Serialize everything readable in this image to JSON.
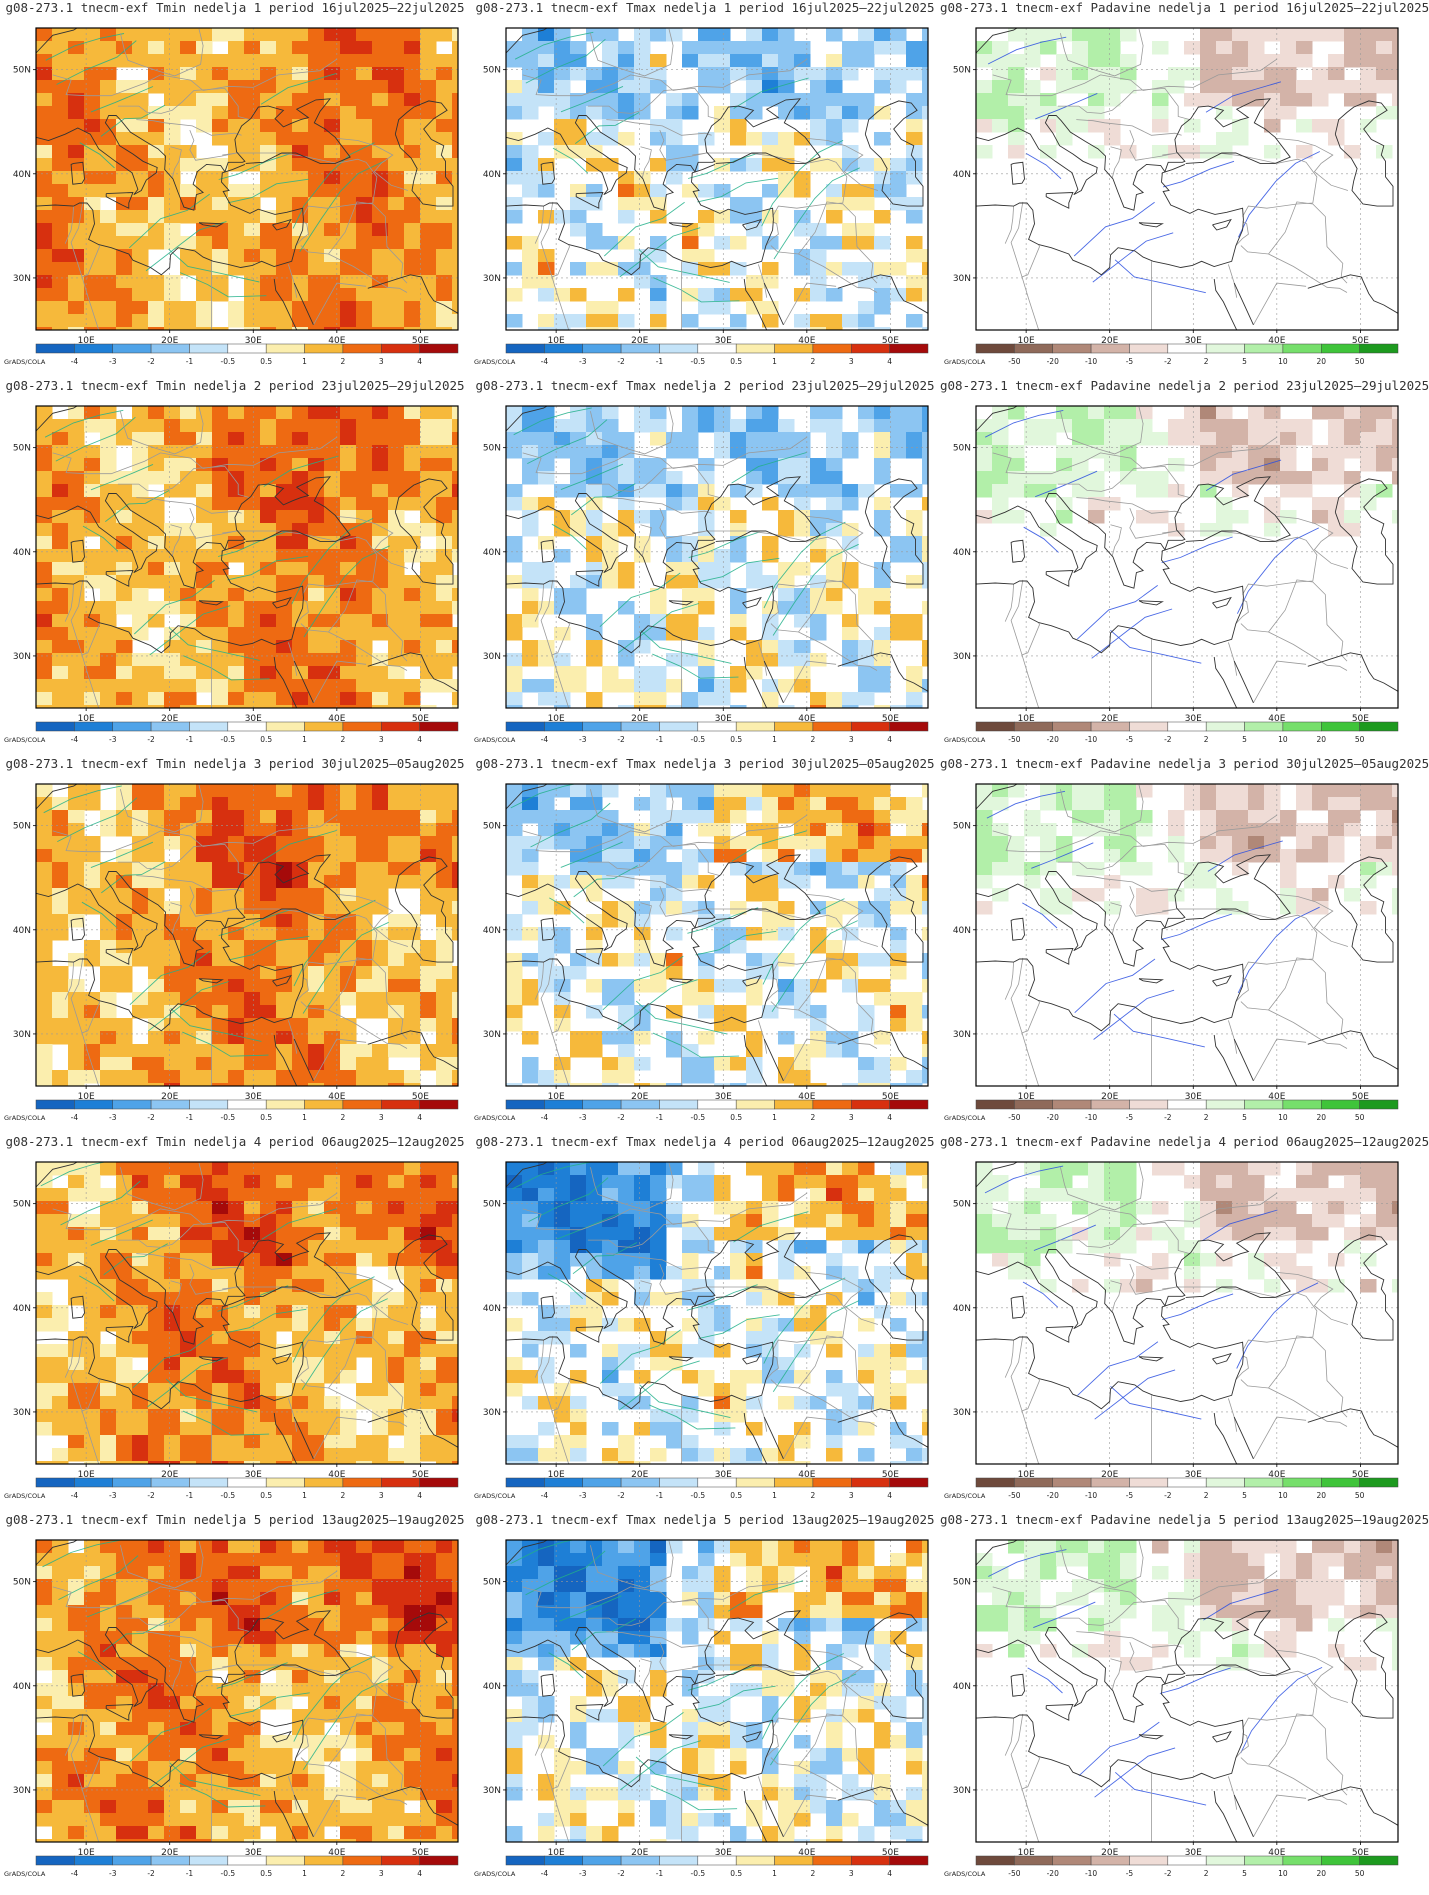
{
  "credit": "GrADS/COLA",
  "lon_labels": [
    "10E",
    "20E",
    "30E",
    "40E",
    "50E"
  ],
  "lat_labels": [
    "50N",
    "40N",
    "30N"
  ],
  "scales": {
    "temp": {
      "ticks": [
        "-4",
        "-3",
        "-2",
        "-1",
        "-0.5",
        "0.5",
        "1",
        "2",
        "3",
        "4"
      ],
      "colors": [
        "#1565c0",
        "#1e7fd6",
        "#4fa3e8",
        "#8cc5f2",
        "#c4e3f8",
        "#ffffff",
        "#fbeeae",
        "#f6b93b",
        "#ee6a12",
        "#d7300f",
        "#a50a0a"
      ]
    },
    "precip": {
      "ticks": [
        "-50",
        "-20",
        "-10",
        "-5",
        "-2",
        "2",
        "5",
        "10",
        "20",
        "50"
      ],
      "colors": [
        "#6e4a3c",
        "#8f6a5a",
        "#b08878",
        "#d3b3a8",
        "#efdcd6",
        "#ffffff",
        "#e1f7dc",
        "#b2efa9",
        "#76df6b",
        "#3fc43a",
        "#1d9a1f"
      ]
    }
  },
  "rows": [
    {
      "panels": [
        {
          "title": "g08-273.1 tnecm-exf Tmin nedelja 1 period 16jul2025–22jul2025",
          "var": "tmin",
          "scale": "temp"
        },
        {
          "title": "g08-273.1 tnecm-exf Tmax nedelja 1 period 16jul2025–22jul2025",
          "var": "tmax",
          "scale": "temp"
        },
        {
          "title": "g08-273.1 tnecm-exf Padavine nedelja 1 period 16jul2025–22jul2025",
          "var": "precip",
          "scale": "precip"
        }
      ]
    },
    {
      "panels": [
        {
          "title": "g08-273.1 tnecm-exf Tmin nedelja 2 period 23jul2025–29jul2025",
          "var": "tmin",
          "scale": "temp"
        },
        {
          "title": "g08-273.1 tnecm-exf Tmax nedelja 2 period 23jul2025–29jul2025",
          "var": "tmax",
          "scale": "temp"
        },
        {
          "title": "g08-273.1 tnecm-exf Padavine nedelja 2 period 23jul2025–29jul2025",
          "var": "precip",
          "scale": "precip"
        }
      ]
    },
    {
      "panels": [
        {
          "title": "g08-273.1 tnecm-exf Tmin nedelja 3 period 30jul2025–05aug2025",
          "var": "tmin",
          "scale": "temp"
        },
        {
          "title": "g08-273.1 tnecm-exf Tmax nedelja 3 period 30jul2025–05aug2025",
          "var": "tmax",
          "scale": "temp"
        },
        {
          "title": "g08-273.1 tnecm-exf Padavine nedelja 3 period 30jul2025–05aug2025",
          "var": "precip",
          "scale": "precip"
        }
      ]
    },
    {
      "panels": [
        {
          "title": "g08-273.1 tnecm-exf Tmin nedelja 4 period 06aug2025–12aug2025",
          "var": "tmin",
          "scale": "temp"
        },
        {
          "title": "g08-273.1 tnecm-exf Tmax nedelja 4 period 06aug2025–12aug2025",
          "var": "tmax",
          "scale": "temp"
        },
        {
          "title": "g08-273.1 tnecm-exf Padavine nedelja 4 period 06aug2025–12aug2025",
          "var": "precip",
          "scale": "precip"
        }
      ]
    },
    {
      "panels": [
        {
          "title": "g08-273.1 tnecm-exf Tmin nedelja 5 period 13aug2025–19aug2025",
          "var": "tmin",
          "scale": "temp"
        },
        {
          "title": "g08-273.1 tnecm-exf Tmax nedelja 5 period 13aug2025–19aug2025",
          "var": "tmax",
          "scale": "temp"
        },
        {
          "title": "g08-273.1 tnecm-exf Padavine nedelja 5 period 13aug2025–19aug2025",
          "var": "precip",
          "scale": "precip"
        }
      ]
    }
  ]
}
